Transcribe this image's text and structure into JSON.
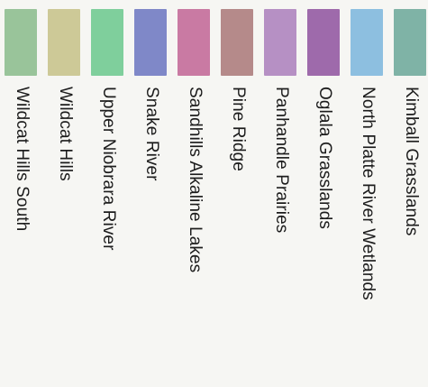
{
  "legend": {
    "items": [
      {
        "label": "Kimball Grasslands",
        "color": "#7fb3a6"
      },
      {
        "label": "North Platte River Wetlands",
        "color": "#8dbfe0"
      },
      {
        "label": "Oglala Grasslands",
        "color": "#9e6aab"
      },
      {
        "label": "Panhandle Prairies",
        "color": "#b690c4"
      },
      {
        "label": "Pine Ridge",
        "color": "#b58a8a"
      },
      {
        "label": "Sandhills Alkaline Lakes",
        "color": "#c97aa3"
      },
      {
        "label": "Snake River",
        "color": "#7f88c8"
      },
      {
        "label": "Upper Niobrara River",
        "color": "#7fcf9c"
      },
      {
        "label": "Wildcat Hills",
        "color": "#cdc997"
      },
      {
        "label": "Wildcat Hills South",
        "color": "#99c49a"
      }
    ]
  }
}
